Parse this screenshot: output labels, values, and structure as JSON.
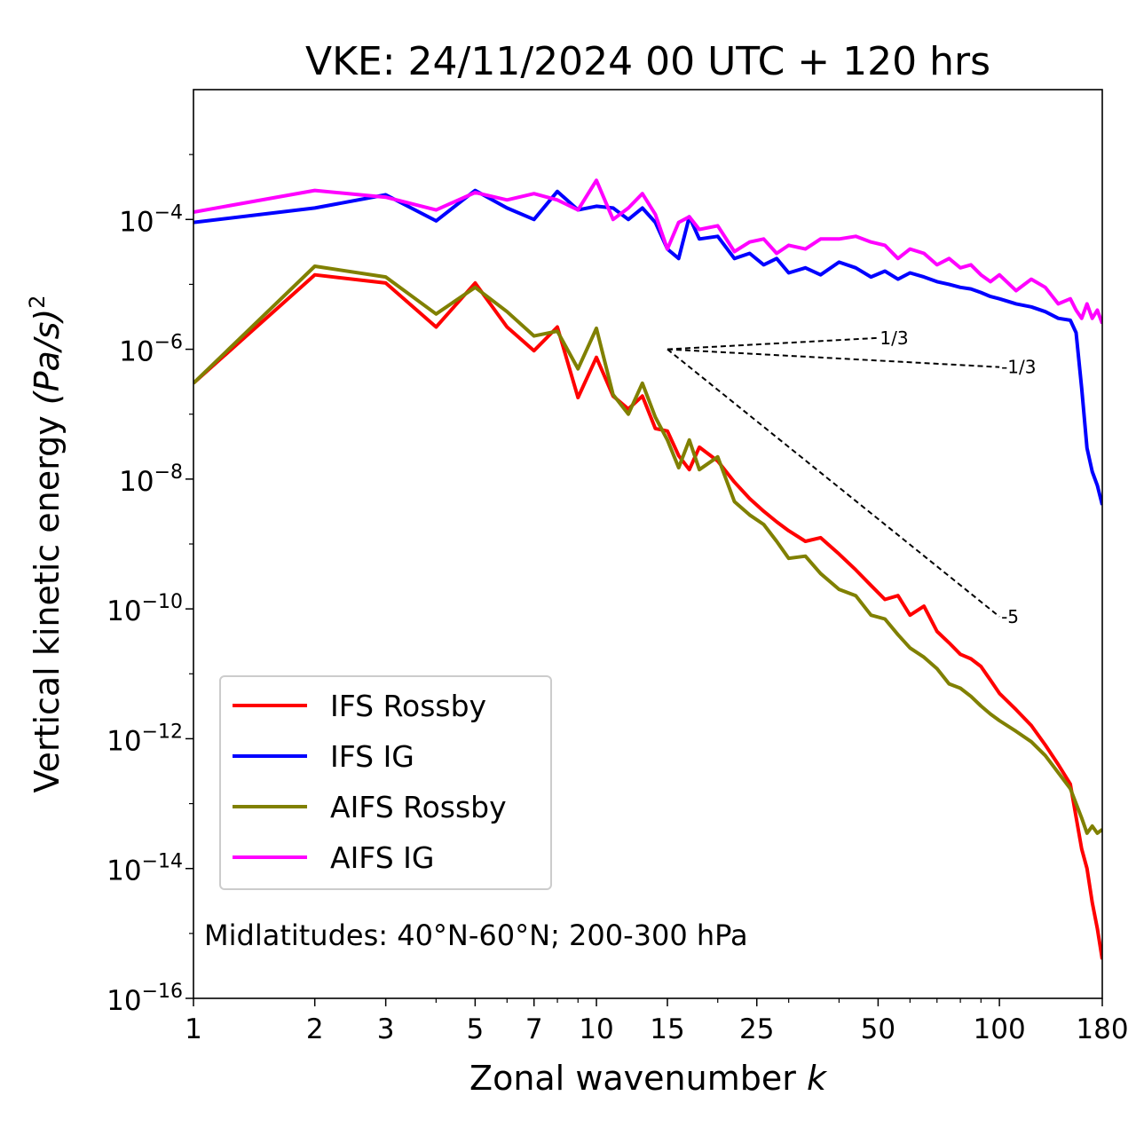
{
  "chart_data": {
    "type": "line",
    "title": "VKE: 24/11/2024 00 UTC + 120 hrs",
    "xlabel_text": "Zonal wavenumber ",
    "xlabel_var": "k",
    "ylabel_text": "Vertical kinetic energy ",
    "ylabel_var": "(Pa/s)",
    "ylabel_exp": "2",
    "x_scale": "log",
    "y_scale": "log",
    "xlim": [
      1,
      180
    ],
    "ylim": [
      1e-16,
      0.01
    ],
    "x_ticks": [
      {
        "value": 1,
        "label": "1"
      },
      {
        "value": 2,
        "label": "2"
      },
      {
        "value": 3,
        "label": "3"
      },
      {
        "value": 5,
        "label": "5"
      },
      {
        "value": 7,
        "label": "7"
      },
      {
        "value": 10,
        "label": "10"
      },
      {
        "value": 15,
        "label": "15"
      },
      {
        "value": 25,
        "label": "25"
      },
      {
        "value": 50,
        "label": "50"
      },
      {
        "value": 100,
        "label": "100"
      },
      {
        "value": 180,
        "label": "180"
      }
    ],
    "y_ticks": [
      {
        "exponent": -4,
        "base": "10",
        "exp": "−4"
      },
      {
        "exponent": -6,
        "base": "10",
        "exp": "−6"
      },
      {
        "exponent": -8,
        "base": "10",
        "exp": "−8"
      },
      {
        "exponent": -10,
        "base": "10",
        "exp": "−10"
      },
      {
        "exponent": -12,
        "base": "10",
        "exp": "−12"
      },
      {
        "exponent": -14,
        "base": "10",
        "exp": "−14"
      },
      {
        "exponent": -16,
        "base": "10",
        "exp": "−16"
      }
    ],
    "grid": false,
    "legend_position": "lower-left",
    "series": [
      {
        "name": "IFS Rossby",
        "color": "#ff0000",
        "points": [
          [
            1,
            3e-07
          ],
          [
            2,
            1.4e-05
          ],
          [
            3,
            1.05e-05
          ],
          [
            4,
            2.2e-06
          ],
          [
            5,
            1.05e-05
          ],
          [
            6,
            2.2e-06
          ],
          [
            7,
            9.5e-07
          ],
          [
            8,
            2.2e-06
          ],
          [
            9,
            1.8e-07
          ],
          [
            10,
            7.5e-07
          ],
          [
            11,
            1.9e-07
          ],
          [
            12,
            1.2e-07
          ],
          [
            13,
            1.9e-07
          ],
          [
            14,
            6e-08
          ],
          [
            15,
            5.5e-08
          ],
          [
            16,
            2.3e-08
          ],
          [
            17,
            1.4e-08
          ],
          [
            18,
            3.1e-08
          ],
          [
            20,
            1.9e-08
          ],
          [
            22,
            9e-09
          ],
          [
            24,
            5e-09
          ],
          [
            26,
            3.2e-09
          ],
          [
            28,
            2.2e-09
          ],
          [
            30,
            1.6e-09
          ],
          [
            33,
            1.1e-09
          ],
          [
            36,
            1.25e-09
          ],
          [
            40,
            7e-10
          ],
          [
            44,
            4e-10
          ],
          [
            48,
            2.3e-10
          ],
          [
            52,
            1.4e-10
          ],
          [
            56,
            1.6e-10
          ],
          [
            60,
            8e-11
          ],
          [
            65,
            1.1e-10
          ],
          [
            70,
            4.5e-11
          ],
          [
            75,
            3e-11
          ],
          [
            80,
            2e-11
          ],
          [
            85,
            1.7e-11
          ],
          [
            90,
            1.3e-11
          ],
          [
            95,
            8e-12
          ],
          [
            100,
            5e-12
          ],
          [
            110,
            2.8e-12
          ],
          [
            120,
            1.6e-12
          ],
          [
            130,
            8e-13
          ],
          [
            140,
            4e-13
          ],
          [
            150,
            2e-13
          ],
          [
            160,
            2e-14
          ],
          [
            165,
            1e-14
          ],
          [
            170,
            3e-15
          ],
          [
            175,
            1.2e-15
          ],
          [
            180,
            4e-16
          ]
        ]
      },
      {
        "name": "IFS IG",
        "color": "#0000ff",
        "points": [
          [
            1,
            9e-05
          ],
          [
            2,
            0.00015
          ],
          [
            3,
            0.00024
          ],
          [
            4,
            9.5e-05
          ],
          [
            5,
            0.00028
          ],
          [
            6,
            0.00015
          ],
          [
            7,
            0.0001
          ],
          [
            8,
            0.00027
          ],
          [
            9,
            0.00014
          ],
          [
            10,
            0.00016
          ],
          [
            11,
            0.00015
          ],
          [
            12,
            0.0001
          ],
          [
            13,
            0.00015
          ],
          [
            14,
            9e-05
          ],
          [
            15,
            3.5e-05
          ],
          [
            16,
            2.5e-05
          ],
          [
            17,
            0.00011
          ],
          [
            18,
            5e-05
          ],
          [
            20,
            5.5e-05
          ],
          [
            22,
            2.5e-05
          ],
          [
            24,
            3e-05
          ],
          [
            26,
            2e-05
          ],
          [
            28,
            2.5e-05
          ],
          [
            30,
            1.5e-05
          ],
          [
            33,
            1.8e-05
          ],
          [
            36,
            1.4e-05
          ],
          [
            40,
            2.2e-05
          ],
          [
            44,
            1.8e-05
          ],
          [
            48,
            1.3e-05
          ],
          [
            52,
            1.6e-05
          ],
          [
            56,
            1.2e-05
          ],
          [
            60,
            1.5e-05
          ],
          [
            65,
            1.3e-05
          ],
          [
            70,
            1.1e-05
          ],
          [
            75,
            1e-05
          ],
          [
            80,
            9e-06
          ],
          [
            85,
            8.5e-06
          ],
          [
            90,
            7.5e-06
          ],
          [
            95,
            6.5e-06
          ],
          [
            100,
            6e-06
          ],
          [
            110,
            5e-06
          ],
          [
            120,
            4.5e-06
          ],
          [
            130,
            3.8e-06
          ],
          [
            140,
            3e-06
          ],
          [
            150,
            2.8e-06
          ],
          [
            155,
            1.8e-06
          ],
          [
            160,
            2.5e-07
          ],
          [
            165,
            3e-08
          ],
          [
            170,
            1.3e-08
          ],
          [
            175,
            8e-09
          ],
          [
            180,
            4e-09
          ]
        ]
      },
      {
        "name": "AIFS Rossby",
        "color": "#808000",
        "points": [
          [
            1,
            3e-07
          ],
          [
            2,
            1.9e-05
          ],
          [
            3,
            1.3e-05
          ],
          [
            4,
            3.5e-06
          ],
          [
            5,
            9e-06
          ],
          [
            6,
            3.8e-06
          ],
          [
            7,
            1.6e-06
          ],
          [
            8,
            1.9e-06
          ],
          [
            9,
            5e-07
          ],
          [
            10,
            2.1e-06
          ],
          [
            11,
            2e-07
          ],
          [
            12,
            1e-07
          ],
          [
            13,
            3e-07
          ],
          [
            14,
            9e-08
          ],
          [
            15,
            4e-08
          ],
          [
            16,
            1.5e-08
          ],
          [
            17,
            4e-08
          ],
          [
            18,
            1.4e-08
          ],
          [
            20,
            2.2e-08
          ],
          [
            22,
            4.5e-09
          ],
          [
            24,
            2.8e-09
          ],
          [
            26,
            2e-09
          ],
          [
            28,
            1.1e-09
          ],
          [
            30,
            6e-10
          ],
          [
            33,
            6.5e-10
          ],
          [
            36,
            3.5e-10
          ],
          [
            40,
            2e-10
          ],
          [
            44,
            1.6e-10
          ],
          [
            48,
            8e-11
          ],
          [
            52,
            7e-11
          ],
          [
            56,
            4e-11
          ],
          [
            60,
            2.5e-11
          ],
          [
            65,
            1.8e-11
          ],
          [
            70,
            1.2e-11
          ],
          [
            75,
            7e-12
          ],
          [
            80,
            6e-12
          ],
          [
            85,
            4.5e-12
          ],
          [
            90,
            3.2e-12
          ],
          [
            95,
            2.4e-12
          ],
          [
            100,
            1.9e-12
          ],
          [
            110,
            1.3e-12
          ],
          [
            120,
            9e-13
          ],
          [
            130,
            5.5e-13
          ],
          [
            140,
            3e-13
          ],
          [
            150,
            1.7e-13
          ],
          [
            160,
            6e-14
          ],
          [
            165,
            3.5e-14
          ],
          [
            170,
            4.5e-14
          ],
          [
            175,
            3.5e-14
          ],
          [
            180,
            4e-14
          ]
        ]
      },
      {
        "name": "AIFS IG",
        "color": "#ff00ff",
        "points": [
          [
            1,
            0.00013
          ],
          [
            2,
            0.00028
          ],
          [
            3,
            0.00022
          ],
          [
            4,
            0.00014
          ],
          [
            5,
            0.00026
          ],
          [
            6,
            0.0002
          ],
          [
            7,
            0.00025
          ],
          [
            8,
            0.0002
          ],
          [
            9,
            0.00014
          ],
          [
            10,
            0.0004
          ],
          [
            11,
            0.0001
          ],
          [
            12,
            0.00015
          ],
          [
            13,
            0.00025
          ],
          [
            14,
            0.00012
          ],
          [
            15,
            3.5e-05
          ],
          [
            16,
            9e-05
          ],
          [
            17,
            0.00011
          ],
          [
            18,
            7e-05
          ],
          [
            20,
            8e-05
          ],
          [
            22,
            3.2e-05
          ],
          [
            24,
            4.5e-05
          ],
          [
            26,
            5e-05
          ],
          [
            28,
            3e-05
          ],
          [
            30,
            4e-05
          ],
          [
            33,
            3.5e-05
          ],
          [
            36,
            5e-05
          ],
          [
            40,
            5e-05
          ],
          [
            44,
            5.5e-05
          ],
          [
            48,
            4.5e-05
          ],
          [
            52,
            4e-05
          ],
          [
            56,
            2.5e-05
          ],
          [
            60,
            3.5e-05
          ],
          [
            65,
            3e-05
          ],
          [
            70,
            2e-05
          ],
          [
            75,
            2.5e-05
          ],
          [
            80,
            1.8e-05
          ],
          [
            85,
            2e-05
          ],
          [
            90,
            1.4e-05
          ],
          [
            95,
            1.1e-05
          ],
          [
            100,
            1.4e-05
          ],
          [
            110,
            8e-06
          ],
          [
            120,
            1.2e-05
          ],
          [
            130,
            9e-06
          ],
          [
            140,
            5e-06
          ],
          [
            150,
            6e-06
          ],
          [
            155,
            4e-06
          ],
          [
            160,
            3e-06
          ],
          [
            165,
            5e-06
          ],
          [
            170,
            3e-06
          ],
          [
            175,
            4e-06
          ],
          [
            180,
            2.5e-06
          ]
        ]
      }
    ],
    "reference_slopes": [
      {
        "label": "1/3",
        "slope": 0.3333,
        "from": [
          15,
          1e-06
        ],
        "to_x": 50
      },
      {
        "label": "-1/3",
        "slope": -0.3333,
        "from": [
          15,
          1e-06
        ],
        "to_x": 100
      },
      {
        "label": "-5",
        "slope": -5,
        "from": [
          15,
          1e-06
        ],
        "to_x": 100
      }
    ],
    "annotation": "Midlatitudes: 40°N-60°N; 200-300 hPa"
  }
}
